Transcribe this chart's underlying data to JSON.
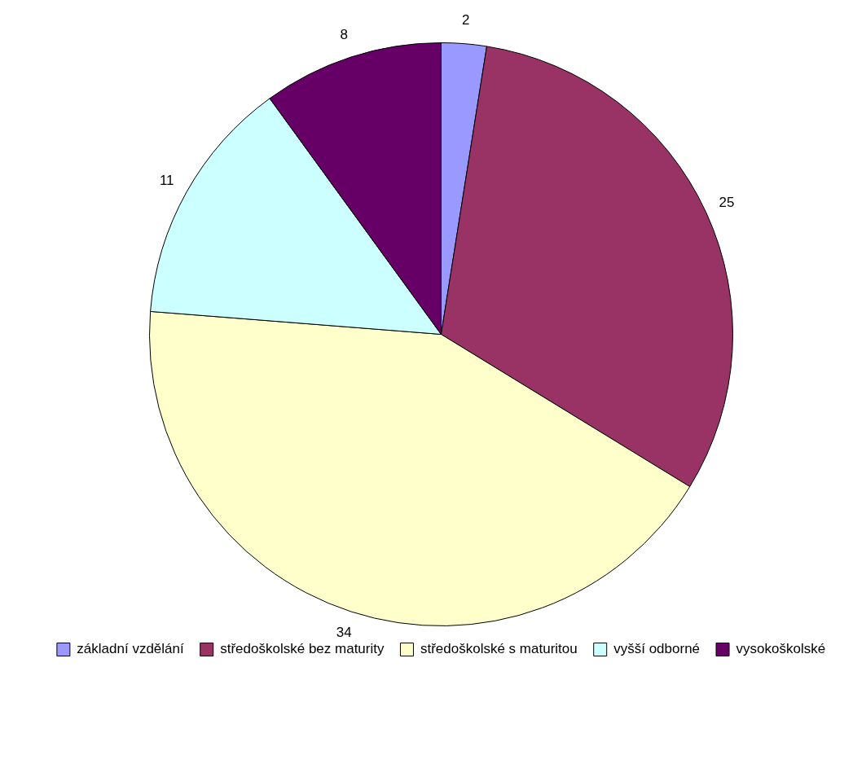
{
  "chart_data": {
    "type": "pie",
    "categories": [
      "základní vzdělání",
      "středoškolské bez maturity",
      "středoškolské s maturitou",
      "vyšší odborné",
      "vysokoškolské"
    ],
    "values": [
      2,
      25,
      34,
      11,
      8
    ],
    "colors": [
      "#9999ff",
      "#993366",
      "#ffffcc",
      "#ccffff",
      "#660066"
    ],
    "data_labels": true,
    "legend": "bottom"
  }
}
